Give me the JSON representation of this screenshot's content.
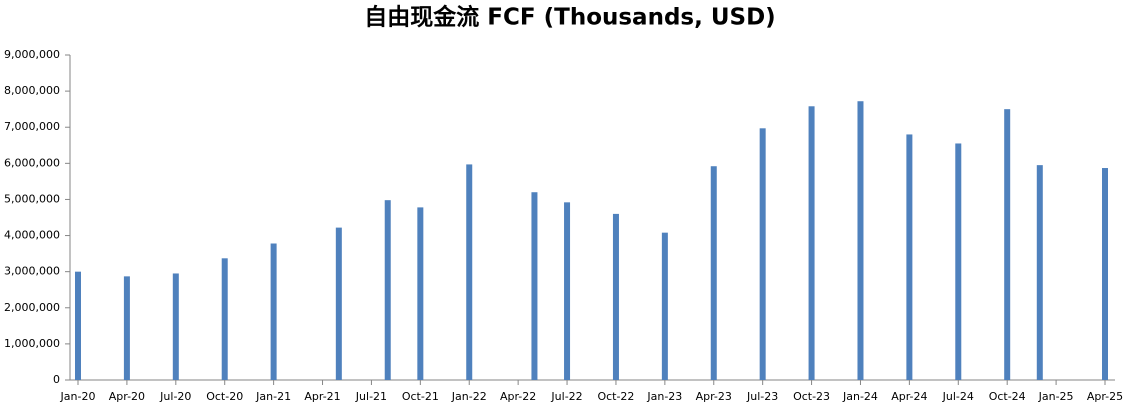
{
  "chart_data": {
    "type": "bar",
    "title": "自由现金流 FCF (Thousands, USD)",
    "x": [
      "2020-01",
      "2020-04",
      "2020-07",
      "2020-10",
      "2021-01",
      "2021-05",
      "2021-08",
      "2021-10",
      "2022-01",
      "2022-05",
      "2022-07",
      "2022-10",
      "2023-01",
      "2023-04",
      "2023-07",
      "2023-10",
      "2024-01",
      "2024-04",
      "2024-07",
      "2024-10",
      "2024-12",
      "2025-04"
    ],
    "values": [
      3000000,
      2870000,
      2950000,
      3370000,
      3780000,
      4220000,
      4980000,
      4780000,
      5970000,
      5200000,
      4920000,
      4600000,
      4080000,
      5920000,
      6970000,
      7580000,
      7720000,
      6800000,
      6550000,
      7500000,
      5950000,
      5870000
    ],
    "color": "#4f81bd",
    "xlim": [
      "2020-01",
      "2025-04"
    ],
    "xticks": [
      {
        "value": "2020-01",
        "label": "Jan-20"
      },
      {
        "value": "2020-04",
        "label": "Apr-20"
      },
      {
        "value": "2020-07",
        "label": "Jul-20"
      },
      {
        "value": "2020-10",
        "label": "Oct-20"
      },
      {
        "value": "2021-01",
        "label": "Jan-21"
      },
      {
        "value": "2021-04",
        "label": "Apr-21"
      },
      {
        "value": "2021-07",
        "label": "Jul-21"
      },
      {
        "value": "2021-10",
        "label": "Oct-21"
      },
      {
        "value": "2022-01",
        "label": "Jan-22"
      },
      {
        "value": "2022-04",
        "label": "Apr-22"
      },
      {
        "value": "2022-07",
        "label": "Jul-22"
      },
      {
        "value": "2022-10",
        "label": "Oct-22"
      },
      {
        "value": "2023-01",
        "label": "Jan-23"
      },
      {
        "value": "2023-04",
        "label": "Apr-23"
      },
      {
        "value": "2023-07",
        "label": "Jul-23"
      },
      {
        "value": "2023-10",
        "label": "Oct-23"
      },
      {
        "value": "2024-01",
        "label": "Jan-24"
      },
      {
        "value": "2024-04",
        "label": "Apr-24"
      },
      {
        "value": "2024-07",
        "label": "Jul-24"
      },
      {
        "value": "2024-10",
        "label": "Oct-24"
      },
      {
        "value": "2025-01",
        "label": "Jan-25"
      },
      {
        "value": "2025-04",
        "label": "Apr-25"
      }
    ],
    "ylim": [
      0,
      9000000
    ],
    "yticks": [
      0,
      {
        "value": 1000000,
        "label": "1,000,000"
      },
      {
        "value": 2000000,
        "label": "2,000,000"
      },
      {
        "value": 3000000,
        "label": "3,000,000"
      },
      {
        "value": 4000000,
        "label": "4,000,000"
      },
      {
        "value": 5000000,
        "label": "5,000,000"
      },
      {
        "value": 6000000,
        "label": "6,000,000"
      },
      {
        "value": 7000000,
        "label": "7,000,000"
      },
      {
        "value": 8000000,
        "label": "8,000,000"
      },
      {
        "value": 9000000,
        "label": "9,000,000"
      }
    ],
    "grid": false
  }
}
